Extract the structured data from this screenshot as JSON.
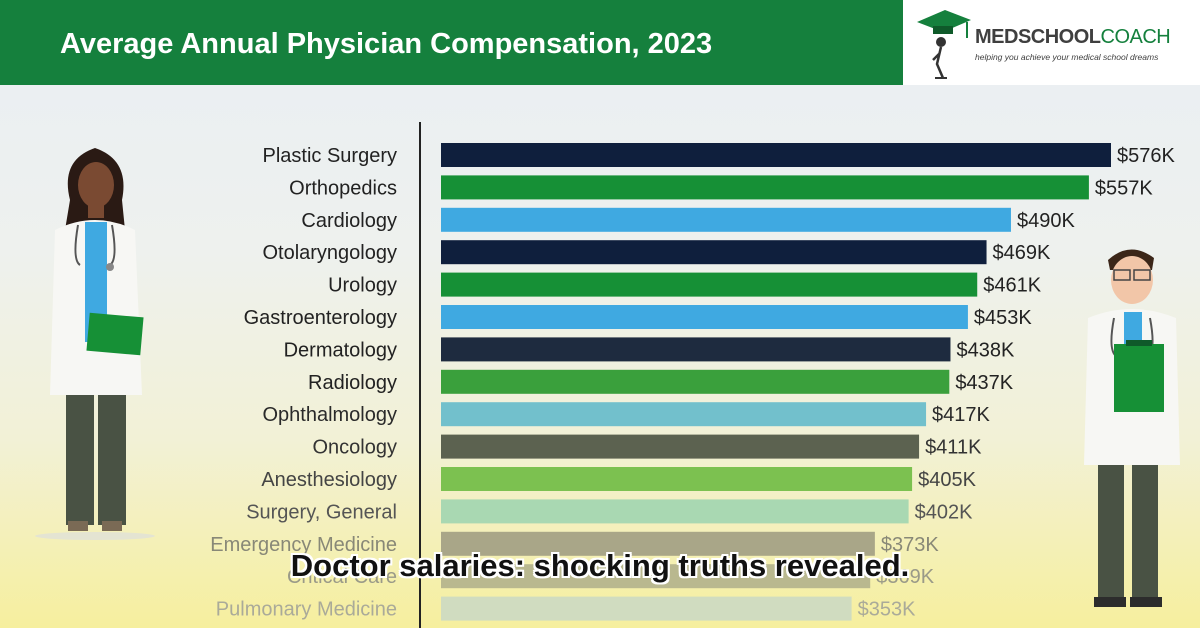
{
  "header": {
    "title": "Average Annual Physician Compensation, 2023"
  },
  "logo": {
    "name_part1": "MEDSCHOOL",
    "name_part2": "COACH",
    "tagline": "helping you achieve your medical school dreams"
  },
  "caption": "Doctor salaries: shocking truths revealed.",
  "colors": {
    "header_green": "#15803d",
    "navy": "#0f1f3d",
    "green": "#169036",
    "sky": "#3fa9e1"
  },
  "chart_data": {
    "type": "bar",
    "orientation": "horizontal",
    "title": "Average Annual Physician Compensation, 2023",
    "categories": [
      "Plastic Surgery",
      "Orthopedics",
      "Cardiology",
      "Otolaryngology",
      "Urology",
      "Gastroenterology",
      "Dermatology",
      "Radiology",
      "Ophthalmology",
      "Oncology",
      "Anesthesiology",
      "Surgery, General",
      "Emergency Medicine",
      "Critical Care",
      "Pulmonary Medicine"
    ],
    "values": [
      576,
      557,
      490,
      469,
      461,
      453,
      438,
      437,
      417,
      411,
      405,
      402,
      373,
      369,
      353
    ],
    "value_labels": [
      "$576K",
      "$557K",
      "$490K",
      "$469K",
      "$461K",
      "$453K",
      "$438K",
      "$437K",
      "$417K",
      "$411K",
      "$405K",
      "$402K",
      "$373K",
      "$369K",
      "$353K"
    ],
    "bar_colors": [
      "#0f1f3d",
      "#169036",
      "#3fa9e1",
      "#0f1f3d",
      "#169036",
      "#3fa9e1",
      "#1e2b3f",
      "#3aa03c",
      "#72c0cc",
      "#5c6250",
      "#7cc150",
      "#a9d8b2",
      "#a9a688",
      "#b9b88f",
      "#d0dcc0"
    ],
    "label_colors": [
      "#222222",
      "#222222",
      "#222222",
      "#222222",
      "#222222",
      "#222222",
      "#222222",
      "#222222",
      "#2a2a2a",
      "#333333",
      "#444444",
      "#555555",
      "#888877",
      "#9a9a88",
      "#aaaa99"
    ],
    "xlim": [
      0,
      576
    ],
    "grid": false,
    "legend": "none"
  }
}
